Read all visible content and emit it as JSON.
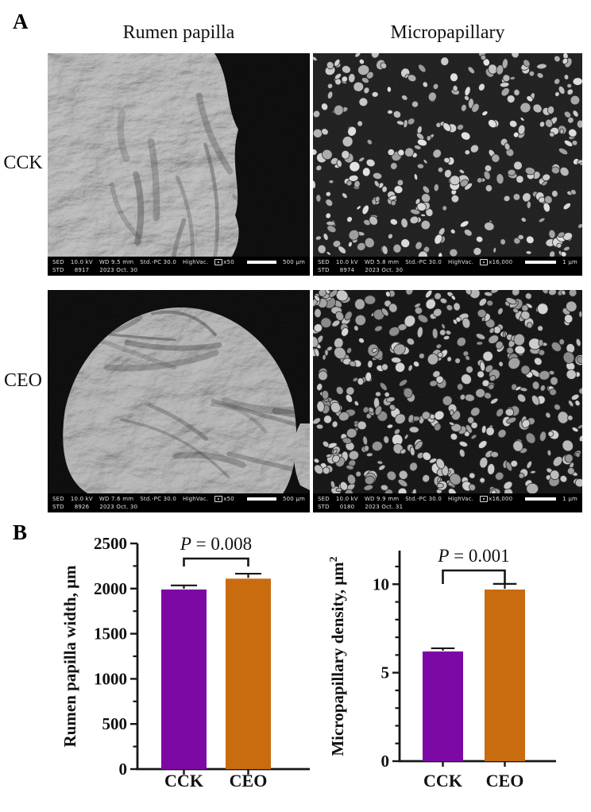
{
  "panel_a": {
    "label": "A",
    "column_headers": [
      "Rumen papilla",
      "Micropapillary"
    ],
    "row_headers": [
      "CCK",
      "CEO"
    ],
    "images": [
      {
        "group": "CCK",
        "column": "Rumen papilla",
        "meta": {
          "detector": "SED",
          "voltage": "10.0 kV",
          "working_distance": "WD 9.5 mm",
          "std_pc": "Std.-PC 30.0",
          "vacuum": "HighVac.",
          "magnification": "x50",
          "scale_label": "500 μm",
          "std": "STD",
          "frame_no": "8917",
          "date": "2023 Oct. 30"
        }
      },
      {
        "group": "CCK",
        "column": "Micropapillary",
        "meta": {
          "detector": "SED",
          "voltage": "10.0 kV",
          "working_distance": "WD 5.8 mm",
          "std_pc": "Std.-PC 30.0",
          "vacuum": "HighVac.",
          "magnification": "x16,000",
          "scale_label": "1 μm",
          "std": "STD",
          "frame_no": "8974",
          "date": "2023 Oct. 30"
        }
      },
      {
        "group": "CEO",
        "column": "Rumen papilla",
        "meta": {
          "detector": "SED",
          "voltage": "10.0 kV",
          "working_distance": "WD 7.6 mm",
          "std_pc": "Std.-PC 30.0",
          "vacuum": "HighVac.",
          "magnification": "x50",
          "scale_label": "500 μm",
          "std": "STD",
          "frame_no": "8926",
          "date": "2023 Oct. 30"
        }
      },
      {
        "group": "CEO",
        "column": "Micropapillary",
        "meta": {
          "detector": "SED",
          "voltage": "10.0 kV",
          "working_distance": "WD 9.9 mm",
          "std_pc": "Std.-PC 30.0",
          "vacuum": "HighVac.",
          "magnification": "x16,000",
          "scale_label": "1 μm",
          "std": "STD",
          "frame_no": "0180",
          "date": "2023 Oct. 31"
        }
      }
    ]
  },
  "panel_b": {
    "label": "B"
  },
  "chart_data": [
    {
      "type": "bar",
      "title": "",
      "categories": [
        "CCK",
        "CEO"
      ],
      "values": [
        1990,
        2110
      ],
      "errors": [
        45,
        55
      ],
      "bar_colors": [
        "#7D09A5",
        "#C96C0F"
      ],
      "ylabel": "Rumen papilla width, μm",
      "ylabel_parts": [
        {
          "t": "Rumen papilla width, μm"
        }
      ],
      "xlabel": "",
      "ylim": [
        0,
        2500
      ],
      "yticks": [
        0,
        500,
        1000,
        1500,
        2000,
        2500
      ],
      "minor_tick_step": 250,
      "p_label": "P = 0.008",
      "grid": false,
      "legend": "none"
    },
    {
      "type": "bar",
      "title": "",
      "categories": [
        "CCK",
        "CEO"
      ],
      "values": [
        6.2,
        9.7
      ],
      "errors": [
        0.18,
        0.32
      ],
      "bar_colors": [
        "#7D09A5",
        "#C96C0F"
      ],
      "ylabel": "Micropapillary density, μm²",
      "ylabel_parts": [
        {
          "t": "Micropapillary density, μm"
        },
        {
          "t": "2",
          "sup": true
        }
      ],
      "xlabel": "",
      "ylim": [
        0,
        11.9
      ],
      "yticks": [
        0,
        5,
        10
      ],
      "minor_tick_step": 1,
      "p_label": "P = 0.001",
      "grid": false,
      "legend": "none"
    }
  ]
}
